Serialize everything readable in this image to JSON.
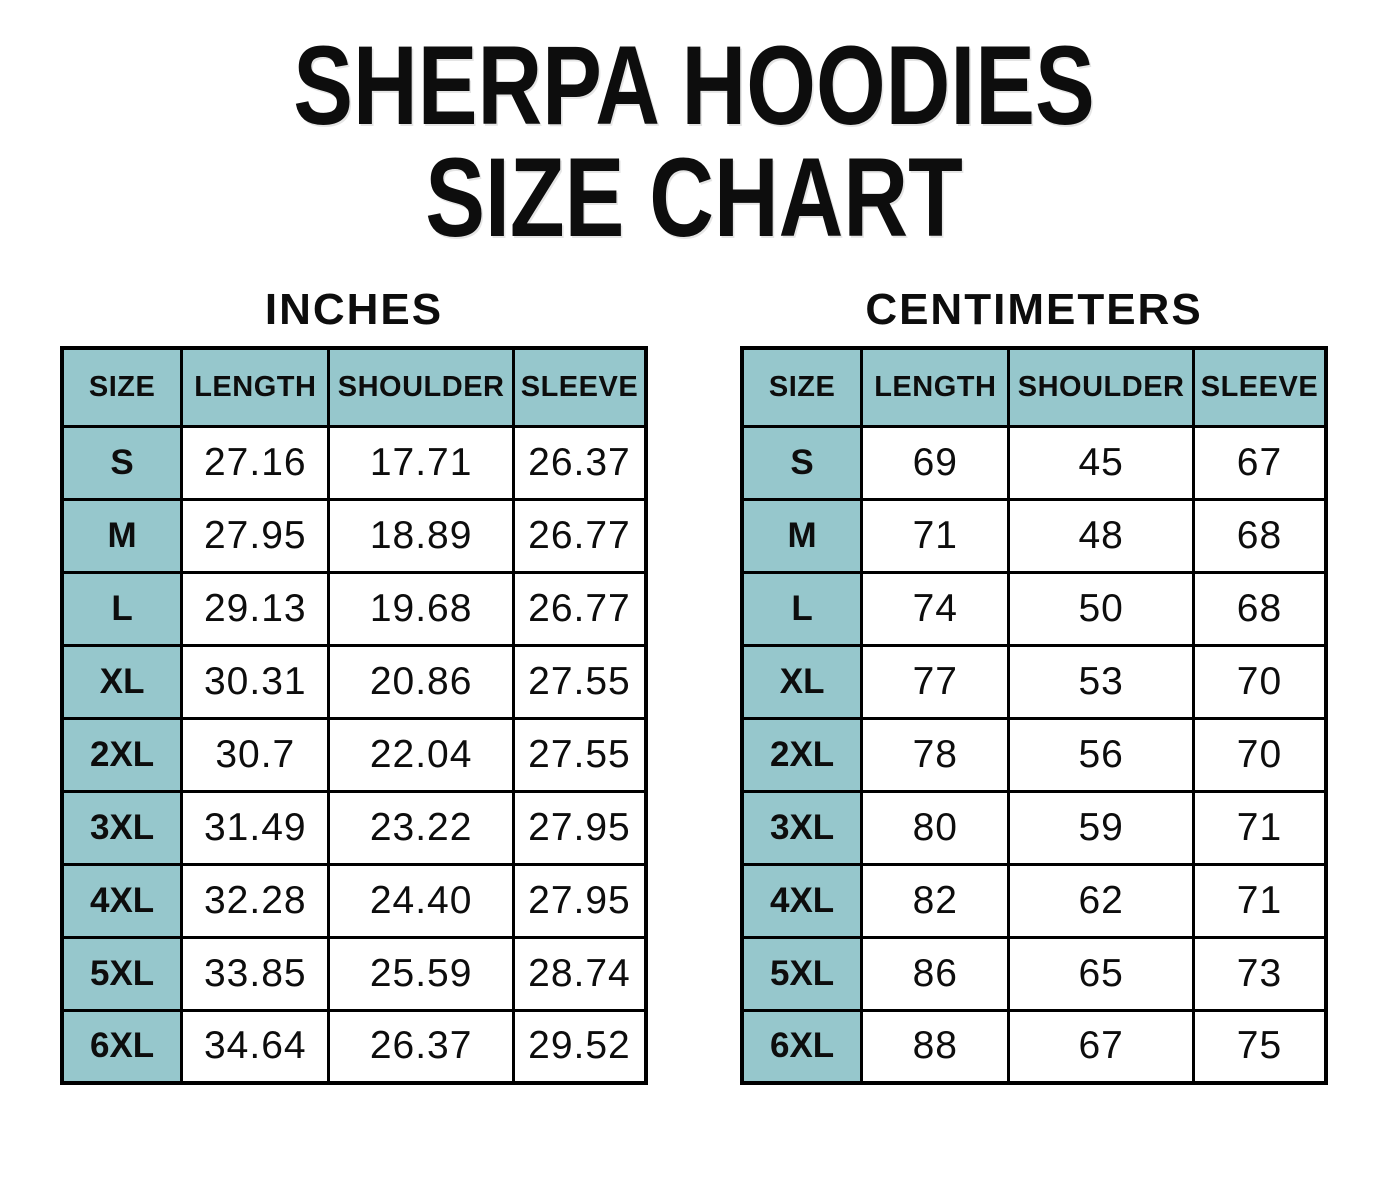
{
  "title": {
    "line1": "SHERPA HOODIES",
    "line2": "SIZE CHART"
  },
  "colors": {
    "header_fill": "#96c7cc",
    "grid_border": "#000000",
    "background": "#ffffff",
    "text": "#0d0d0d"
  },
  "tables": [
    {
      "caption": "INCHES",
      "columns": [
        "SIZE",
        "LENGTH",
        "SHOULDER",
        "SLEEVE"
      ],
      "rows": [
        {
          "size": "S",
          "values": [
            "27.16",
            "17.71",
            "26.37"
          ]
        },
        {
          "size": "M",
          "values": [
            "27.95",
            "18.89",
            "26.77"
          ]
        },
        {
          "size": "L",
          "values": [
            "29.13",
            "19.68",
            "26.77"
          ]
        },
        {
          "size": "XL",
          "values": [
            "30.31",
            "20.86",
            "27.55"
          ]
        },
        {
          "size": "2XL",
          "values": [
            "30.7",
            "22.04",
            "27.55"
          ]
        },
        {
          "size": "3XL",
          "values": [
            "31.49",
            "23.22",
            "27.95"
          ]
        },
        {
          "size": "4XL",
          "values": [
            "32.28",
            "24.40",
            "27.95"
          ]
        },
        {
          "size": "5XL",
          "values": [
            "33.85",
            "25.59",
            "28.74"
          ]
        },
        {
          "size": "6XL",
          "values": [
            "34.64",
            "26.37",
            "29.52"
          ]
        }
      ]
    },
    {
      "caption": "CENTIMETERS",
      "columns": [
        "SIZE",
        "LENGTH",
        "SHOULDER",
        "SLEEVE"
      ],
      "rows": [
        {
          "size": "S",
          "values": [
            "69",
            "45",
            "67"
          ]
        },
        {
          "size": "M",
          "values": [
            "71",
            "48",
            "68"
          ]
        },
        {
          "size": "L",
          "values": [
            "74",
            "50",
            "68"
          ]
        },
        {
          "size": "XL",
          "values": [
            "77",
            "53",
            "70"
          ]
        },
        {
          "size": "2XL",
          "values": [
            "78",
            "56",
            "70"
          ]
        },
        {
          "size": "3XL",
          "values": [
            "80",
            "59",
            "71"
          ]
        },
        {
          "size": "4XL",
          "values": [
            "82",
            "62",
            "71"
          ]
        },
        {
          "size": "5XL",
          "values": [
            "86",
            "65",
            "73"
          ]
        },
        {
          "size": "6XL",
          "values": [
            "88",
            "67",
            "75"
          ]
        }
      ]
    }
  ],
  "chart_data": [
    {
      "type": "table",
      "title": "INCHES",
      "columns": [
        "SIZE",
        "LENGTH",
        "SHOULDER",
        "SLEEVE"
      ],
      "rows": [
        [
          "S",
          27.16,
          17.71,
          26.37
        ],
        [
          "M",
          27.95,
          18.89,
          26.77
        ],
        [
          "L",
          29.13,
          19.68,
          26.77
        ],
        [
          "XL",
          30.31,
          20.86,
          27.55
        ],
        [
          "2XL",
          30.7,
          22.04,
          27.55
        ],
        [
          "3XL",
          31.49,
          23.22,
          27.95
        ],
        [
          "4XL",
          32.28,
          24.4,
          27.95
        ],
        [
          "5XL",
          33.85,
          25.59,
          28.74
        ],
        [
          "6XL",
          34.64,
          26.37,
          29.52
        ]
      ]
    },
    {
      "type": "table",
      "title": "CENTIMETERS",
      "columns": [
        "SIZE",
        "LENGTH",
        "SHOULDER",
        "SLEEVE"
      ],
      "rows": [
        [
          "S",
          69,
          45,
          67
        ],
        [
          "M",
          71,
          48,
          68
        ],
        [
          "L",
          74,
          50,
          68
        ],
        [
          "XL",
          77,
          53,
          70
        ],
        [
          "2XL",
          78,
          56,
          70
        ],
        [
          "3XL",
          80,
          59,
          71
        ],
        [
          "4XL",
          82,
          62,
          71
        ],
        [
          "5XL",
          86,
          65,
          73
        ],
        [
          "6XL",
          88,
          67,
          75
        ]
      ]
    }
  ]
}
